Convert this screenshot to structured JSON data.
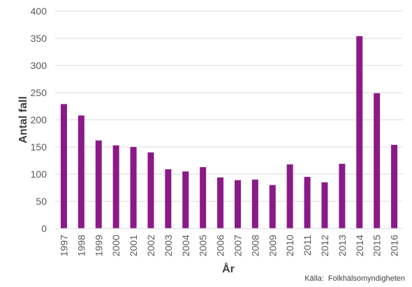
{
  "chart_data": {
    "type": "bar",
    "categories": [
      "1997",
      "1998",
      "1999",
      "2000",
      "2001",
      "2002",
      "2003",
      "2004",
      "2005",
      "2006",
      "2007",
      "2008",
      "2009",
      "2010",
      "2011",
      "2012",
      "2013",
      "2014",
      "2015",
      "2016"
    ],
    "values": [
      229,
      208,
      162,
      153,
      150,
      140,
      109,
      105,
      113,
      94,
      89,
      90,
      80,
      118,
      95,
      85,
      119,
      354,
      249,
      154
    ],
    "xlabel": "År",
    "ylabel": "Antal fall",
    "ylim": [
      0,
      400
    ],
    "yticks": [
      0,
      50,
      100,
      150,
      200,
      250,
      300,
      350,
      400
    ],
    "grid": true,
    "bar_color": "#8B1A89",
    "grid_color": "#D9D9D9",
    "source": "Källa:  Folkhälsomyndigheten"
  }
}
